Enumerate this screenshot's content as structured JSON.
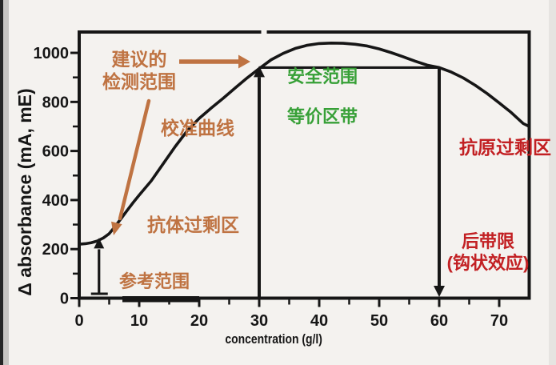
{
  "colors": {
    "orange": "#bf7342",
    "green": "#37a037",
    "red": "#c22023",
    "line_black": "#161616",
    "background": "#f4f2ef"
  },
  "annotations": {
    "recommended_detection_range": {
      "line1": "建议的",
      "line2": "检测范围"
    },
    "calibration_curve": "校准曲线",
    "safe_range": "安全范围",
    "equivalence_zone": "等价区带",
    "antibody_excess_zone": "抗体过剩区",
    "reference_range": "参考范围",
    "antigen_excess_zone": "抗原过剩区",
    "hook_limit": {
      "line1": "后带限",
      "line2": "(钩状效应)"
    }
  },
  "chart_data": {
    "type": "line",
    "title": "",
    "xlabel": "concentration (g/l)",
    "ylabel": "Δ absorbance (mA, mE)",
    "xlim": [
      0,
      75
    ],
    "ylim": [
      0,
      1085
    ],
    "grid": false,
    "legend": "none",
    "x_major_ticks": [
      0,
      10,
      20,
      30,
      40,
      50,
      60,
      70
    ],
    "x_minor_ticks": [
      5,
      15,
      25,
      35,
      45,
      55,
      65
    ],
    "y_major_ticks": [
      0,
      200,
      400,
      600,
      800,
      1000
    ],
    "y_minor_ticks": [
      100,
      300,
      500,
      700,
      900
    ],
    "series": [
      {
        "name": "校准曲线 (calibration curve)",
        "x": [
          0,
          1,
          2,
          3,
          4,
          5,
          6,
          7,
          8,
          9,
          10,
          12,
          14,
          16,
          18,
          20,
          22,
          24,
          26,
          28,
          30,
          32,
          34,
          36,
          38,
          40,
          42,
          44,
          46,
          48,
          50,
          52,
          54,
          56,
          58,
          60,
          62,
          64,
          66,
          68,
          70,
          72,
          74,
          75
        ],
        "y": [
          220,
          222,
          226,
          233,
          245,
          263,
          293,
          325,
          358,
          390,
          420,
          478,
          548,
          618,
          682,
          733,
          775,
          815,
          857,
          898,
          936,
          972,
          998,
          1018,
          1031,
          1038,
          1040,
          1039,
          1035,
          1028,
          1016,
          1001,
          984,
          966,
          950,
          940,
          922,
          898,
          868,
          834,
          796,
          757,
          712,
          700
        ]
      }
    ],
    "markers": {
      "equivalence_band_x": [
        30,
        60
      ],
      "equivalence_band_level": 940,
      "reference_range_bar_x": [
        7.2,
        20
      ],
      "detection_low_arrow_x": 3.3,
      "detection_low_arrow_top": 245
    }
  }
}
